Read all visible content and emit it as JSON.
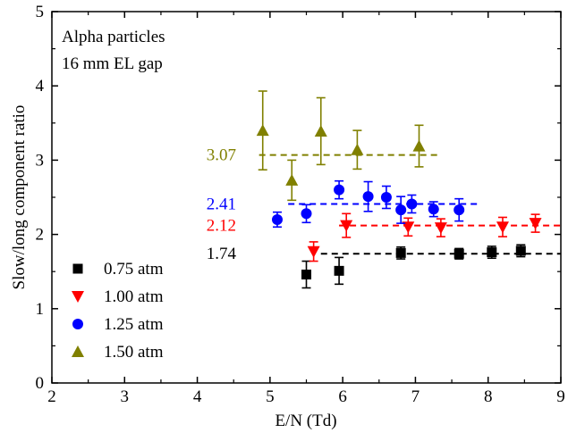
{
  "chart_data": {
    "type": "scatter",
    "title": "",
    "xlabel": "E/N (Td)",
    "ylabel": "Slow/long component ratio",
    "xlim": [
      2,
      9
    ],
    "ylim": [
      0,
      5
    ],
    "xticks": [
      2,
      3,
      4,
      5,
      6,
      7,
      8,
      9
    ],
    "yticks": [
      0,
      1,
      2,
      3,
      4,
      5
    ],
    "grid": false,
    "legend_position": "bottom-left",
    "annotations": [
      "Alpha particles",
      "16 mm EL gap"
    ],
    "series": [
      {
        "name": "0.75 atm",
        "marker": "square",
        "color": "#000000",
        "points": [
          {
            "x": 5.5,
            "y": 1.46,
            "err": 0.18
          },
          {
            "x": 5.95,
            "y": 1.51,
            "err": 0.18
          },
          {
            "x": 6.8,
            "y": 1.75,
            "err": 0.08
          },
          {
            "x": 7.6,
            "y": 1.74,
            "err": 0.07
          },
          {
            "x": 8.05,
            "y": 1.76,
            "err": 0.08
          },
          {
            "x": 8.45,
            "y": 1.78,
            "err": 0.08
          }
        ],
        "mean": {
          "value": 1.74,
          "label": "1.74",
          "x_range": [
            5.7,
            9.0
          ]
        }
      },
      {
        "name": "1.00 atm",
        "marker": "triangle-down",
        "color": "#ff0000",
        "points": [
          {
            "x": 5.6,
            "y": 1.77,
            "err": 0.13
          },
          {
            "x": 6.05,
            "y": 2.12,
            "err": 0.16
          },
          {
            "x": 6.9,
            "y": 2.1,
            "err": 0.12
          },
          {
            "x": 7.35,
            "y": 2.09,
            "err": 0.12
          },
          {
            "x": 8.2,
            "y": 2.1,
            "err": 0.13
          },
          {
            "x": 8.65,
            "y": 2.15,
            "err": 0.12
          }
        ],
        "mean": {
          "value": 2.12,
          "label": "2.12",
          "x_range": [
            5.95,
            9.0
          ]
        }
      },
      {
        "name": "1.25 atm",
        "marker": "circle",
        "color": "#0000ff",
        "points": [
          {
            "x": 5.1,
            "y": 2.2,
            "err": 0.1
          },
          {
            "x": 5.5,
            "y": 2.28,
            "err": 0.12
          },
          {
            "x": 5.95,
            "y": 2.6,
            "err": 0.12
          },
          {
            "x": 6.35,
            "y": 2.51,
            "err": 0.2
          },
          {
            "x": 6.6,
            "y": 2.5,
            "err": 0.15
          },
          {
            "x": 6.8,
            "y": 2.33,
            "err": 0.18
          },
          {
            "x": 6.95,
            "y": 2.41,
            "err": 0.12
          },
          {
            "x": 7.25,
            "y": 2.34,
            "err": 0.1
          },
          {
            "x": 7.6,
            "y": 2.33,
            "err": 0.15
          }
        ],
        "mean": {
          "value": 2.41,
          "label": "2.41",
          "x_range": [
            5.25,
            7.9
          ]
        }
      },
      {
        "name": "1.50 atm",
        "marker": "triangle-up",
        "color": "#808000",
        "points": [
          {
            "x": 4.9,
            "y": 3.4,
            "err": 0.53
          },
          {
            "x": 5.3,
            "y": 2.73,
            "err": 0.27
          },
          {
            "x": 5.7,
            "y": 3.39,
            "err": 0.45
          },
          {
            "x": 6.2,
            "y": 3.14,
            "err": 0.26
          },
          {
            "x": 7.05,
            "y": 3.19,
            "err": 0.28
          }
        ],
        "mean": {
          "value": 3.07,
          "label": "3.07",
          "x_range": [
            4.85,
            7.35
          ]
        }
      }
    ]
  }
}
